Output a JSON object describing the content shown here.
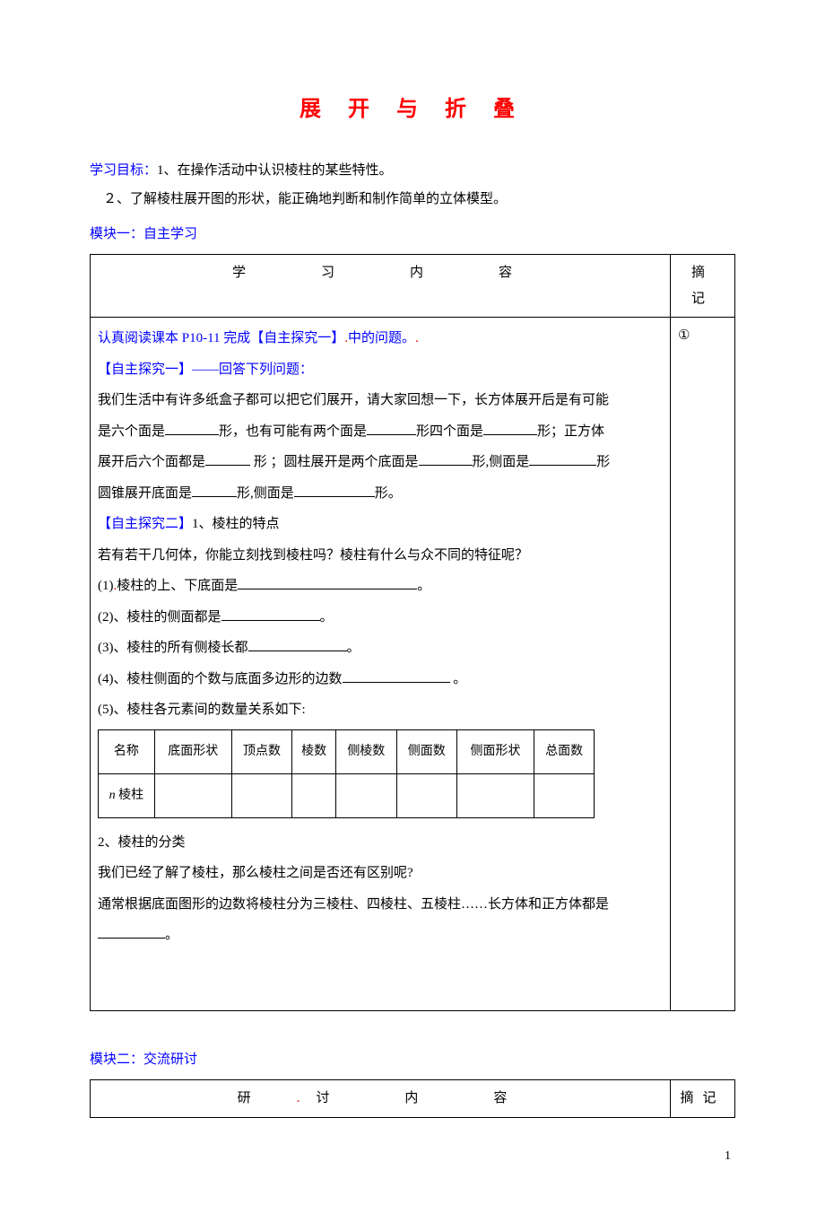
{
  "title": "展 开 与 折 叠",
  "objective_label": "学习目标：",
  "objective_1": "1、在操作活动中认识棱柱的某些特性。",
  "objective_2": "２、了解棱柱展开图的形状，能正确地判断和制作简单的立体模型。",
  "module1_label": "模块一：自主学习",
  "table1_header_content": "学　　习　　内　　容",
  "table1_header_notes": "摘　记",
  "line1_a": "认真阅读课本 P10-11 完成【自主探究一】",
  "line1_b": "中的问题。",
  "line2": "【自主探究一】——回答下列问题：",
  "para1_a": "我们生活中有许多纸盒子都可以把它们展开，请大家回想一下，长方体展开后是有可能",
  "para1_b": "是六个面是",
  "para1_c": "形，也有可能有两个面是",
  "para1_d": "形四个面是",
  "para1_e": "形；正方体",
  "para1_f": "展开后六个面都是",
  "para1_g": " 形 ；圆柱展开是两个底面是",
  "para1_h": "形,侧面是",
  "para1_i": "形",
  "para1_j": "圆锥展开底面是",
  "para1_k": "形,侧面是",
  "para1_l": "形。",
  "section2_title": "【自主探究二】",
  "section2_sub": "1、棱柱的特点",
  "para2": "若有若干几何体，你能立刻找到棱柱吗？棱柱有什么与众不同的特征呢？",
  "item1_a": "(1)",
  "item1_b": "棱柱的上、下底面是",
  "item1_c": "。",
  "item2_a": "(2)、棱柱的侧面都是",
  "item2_b": "。",
  "item3_a": "(3)、棱柱的所有侧棱长都",
  "item3_b": "。",
  "item4_a": "(4)、棱柱侧面的个数与底面多边形的边数",
  "item4_b": " 。",
  "item5": "(5)、棱柱各元素间的数量关系如下:",
  "inner_table": {
    "headers": [
      "名称",
      "底面形状",
      "顶点数",
      "棱数",
      "侧棱数",
      "侧面数",
      "侧面形状",
      "总面数"
    ],
    "row_label_prefix": "n",
    "row_label_suffix": " 棱柱"
  },
  "section3_title": "2、棱柱的分类",
  "para3_a": "我们已经了解了棱柱，那么棱柱之间是否还有区别呢?",
  "para3_b": "通常根据底面图形的边数将棱柱分为三棱柱、四棱柱、五棱柱……长方体和正方体都是",
  "para3_c": "。",
  "notes_mark": "①",
  "module2_label": "模块二：交流研讨",
  "table2_header_content": "研　　讨　　内　　容",
  "table2_header_notes": "摘记",
  "page_number": "1"
}
